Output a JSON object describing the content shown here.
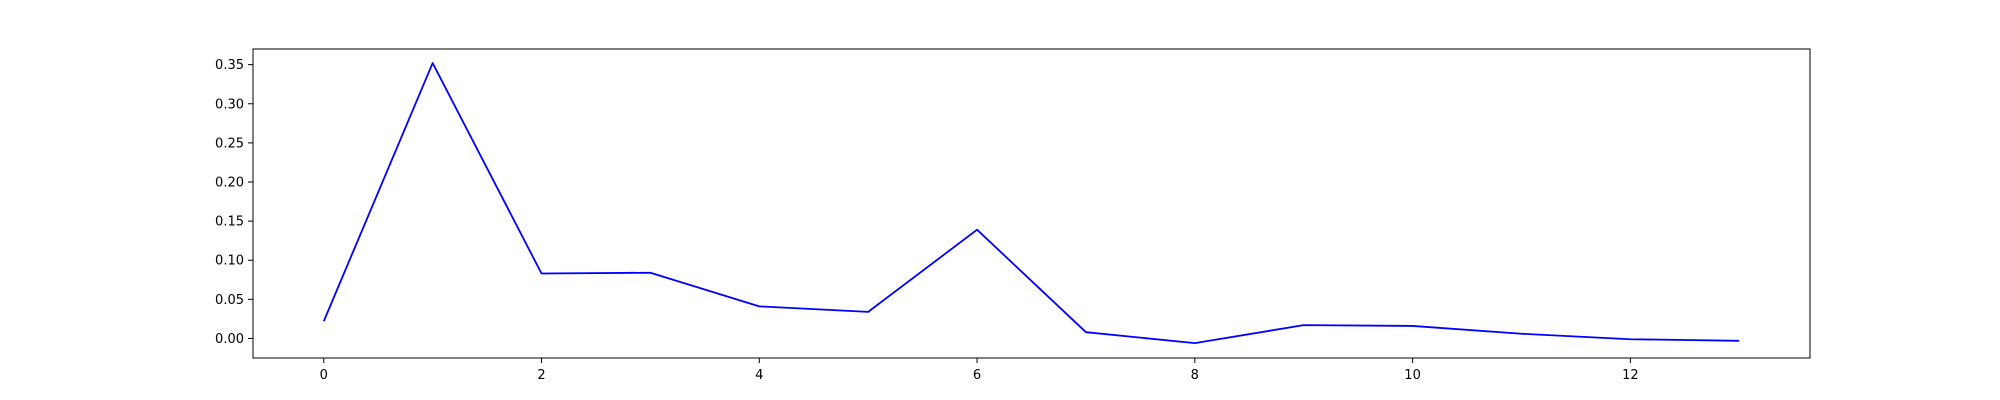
{
  "chart_data": {
    "type": "line",
    "title": "",
    "xlabel": "",
    "ylabel": "",
    "x": [
      0,
      1,
      2,
      3,
      4,
      5,
      6,
      7,
      8,
      9,
      10,
      11,
      12,
      13
    ],
    "series": [
      {
        "color": "#0000ff",
        "values": [
          0.022,
          0.352,
          0.083,
          0.084,
          0.041,
          0.034,
          0.139,
          0.008,
          -0.006,
          0.017,
          0.016,
          0.006,
          -0.001,
          -0.003
        ]
      }
    ],
    "xlim": [
      -0.65,
      13.65
    ],
    "ylim": [
      -0.025,
      0.37
    ],
    "xticks": [
      0,
      2,
      4,
      6,
      8,
      10,
      12
    ],
    "xtick_labels": [
      "0",
      "2",
      "4",
      "6",
      "8",
      "10",
      "12"
    ],
    "yticks": [
      0.0,
      0.05,
      0.1,
      0.15,
      0.2,
      0.25,
      0.3,
      0.35
    ],
    "ytick_labels": [
      "0.00",
      "0.05",
      "0.10",
      "0.15",
      "0.20",
      "0.25",
      "0.30",
      "0.35"
    ],
    "grid": false,
    "legend": "none"
  }
}
